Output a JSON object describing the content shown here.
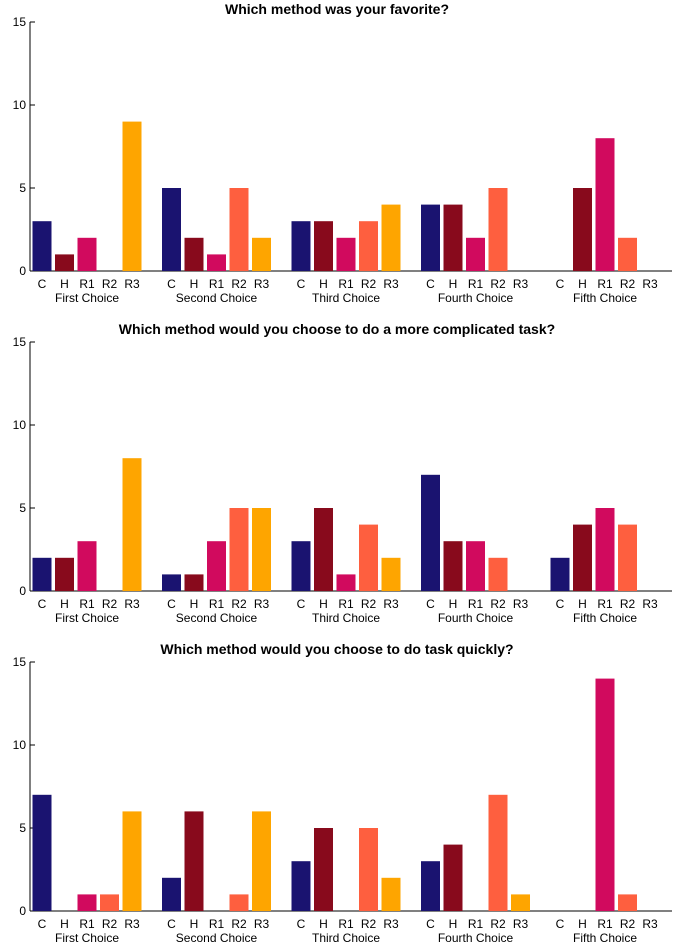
{
  "colors": {
    "C": "#1a1370",
    "H": "#880a1c",
    "R1": "#d10a5e",
    "R2": "#fe5f3f",
    "R3": "#fea500",
    "axis": "#000000",
    "text": "#000000"
  },
  "chart_data": [
    {
      "type": "bar",
      "title": "Which method was your favorite?",
      "groups": [
        "First Choice",
        "Second Choice",
        "Third Choice",
        "Fourth Choice",
        "Fifth Choice"
      ],
      "methods": [
        "C",
        "H",
        "R1",
        "R2",
        "R3"
      ],
      "series": [
        {
          "name": "C",
          "values": [
            3,
            5,
            3,
            4,
            0
          ]
        },
        {
          "name": "H",
          "values": [
            1,
            2,
            3,
            4,
            5
          ]
        },
        {
          "name": "R1",
          "values": [
            2,
            1,
            2,
            2,
            8
          ]
        },
        {
          "name": "R2",
          "values": [
            0,
            5,
            3,
            5,
            2
          ]
        },
        {
          "name": "R3",
          "values": [
            9,
            2,
            4,
            0,
            0
          ]
        }
      ],
      "ylim": [
        0,
        15
      ],
      "yticks": [
        0,
        5,
        10,
        15
      ],
      "xlabel": "",
      "ylabel": ""
    },
    {
      "type": "bar",
      "title": "Which method would you choose to do a more complicated task?",
      "groups": [
        "First Choice",
        "Second Choice",
        "Third Choice",
        "Fourth Choice",
        "Fifth Choice"
      ],
      "methods": [
        "C",
        "H",
        "R1",
        "R2",
        "R3"
      ],
      "series": [
        {
          "name": "C",
          "values": [
            2,
            1,
            3,
            7,
            2
          ]
        },
        {
          "name": "H",
          "values": [
            2,
            1,
            5,
            3,
            4
          ]
        },
        {
          "name": "R1",
          "values": [
            3,
            3,
            1,
            3,
            5
          ]
        },
        {
          "name": "R2",
          "values": [
            0,
            5,
            4,
            2,
            4
          ]
        },
        {
          "name": "R3",
          "values": [
            8,
            5,
            2,
            0,
            0
          ]
        }
      ],
      "ylim": [
        0,
        15
      ],
      "yticks": [
        0,
        5,
        10,
        15
      ],
      "xlabel": "",
      "ylabel": ""
    },
    {
      "type": "bar",
      "title": "Which method would you choose to do task quickly?",
      "groups": [
        "First Choice",
        "Second Choice",
        "Third Choice",
        "Fourth Choice",
        "Fifth Choice"
      ],
      "methods": [
        "C",
        "H",
        "R1",
        "R2",
        "R3"
      ],
      "series": [
        {
          "name": "C",
          "values": [
            7,
            2,
            3,
            3,
            0
          ]
        },
        {
          "name": "H",
          "values": [
            0,
            6,
            5,
            4,
            0
          ]
        },
        {
          "name": "R1",
          "values": [
            1,
            0,
            0,
            0,
            14
          ]
        },
        {
          "name": "R2",
          "values": [
            1,
            1,
            5,
            7,
            1
          ]
        },
        {
          "name": "R3",
          "values": [
            6,
            6,
            2,
            1,
            0
          ]
        }
      ],
      "ylim": [
        0,
        15
      ],
      "yticks": [
        0,
        5,
        10,
        15
      ],
      "xlabel": "",
      "ylabel": ""
    }
  ]
}
